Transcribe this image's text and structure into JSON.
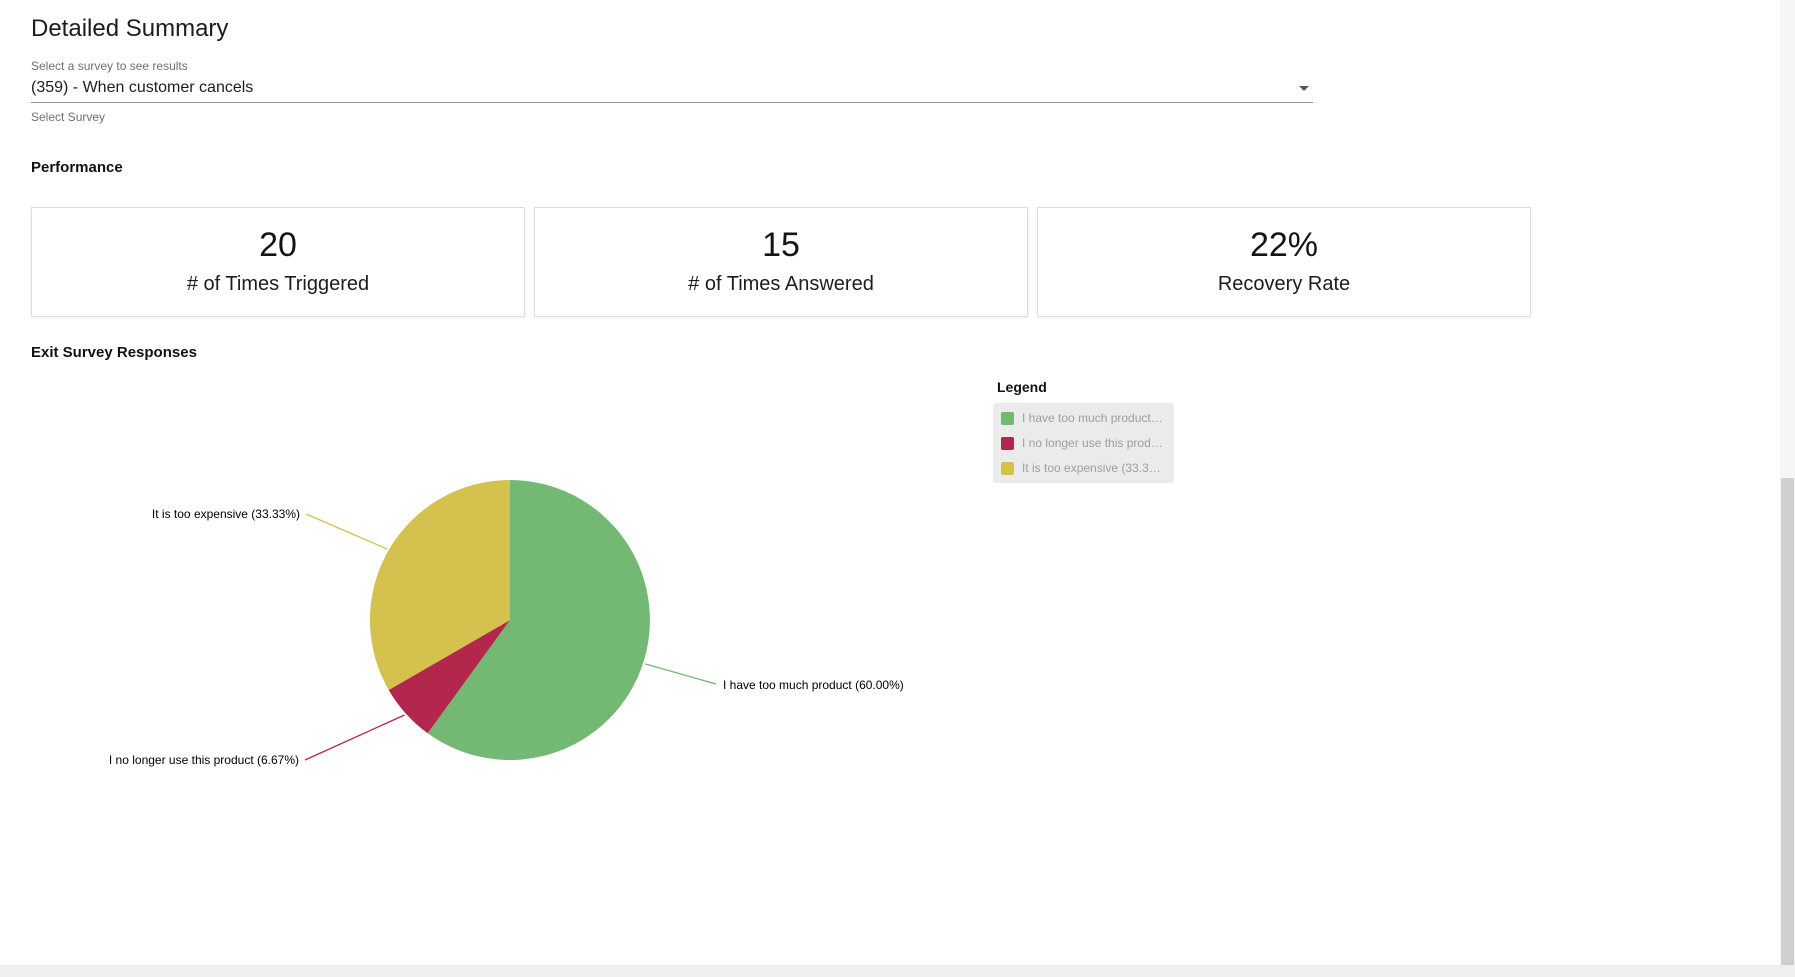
{
  "page": {
    "title": "Detailed Summary"
  },
  "survey_select": {
    "label": "Select a survey to see results",
    "value": "(359) - When customer cancels",
    "helper": "Select Survey"
  },
  "performance": {
    "heading": "Performance",
    "cards": [
      {
        "value": "20",
        "label": "# of Times Triggered"
      },
      {
        "value": "15",
        "label": "# of Times Answered"
      },
      {
        "value": "22%",
        "label": "Recovery Rate"
      }
    ]
  },
  "responses": {
    "heading": "Exit Survey Responses",
    "legend_title": "Legend"
  },
  "chart_data": {
    "type": "pie",
    "title": "Exit Survey Responses",
    "start": "top",
    "direction": "clockwise",
    "legend_position": "top-right",
    "slices": [
      {
        "label": "I have too much product",
        "pct": 60.0,
        "display": "I have too much product (60.00%)",
        "color": "#73b973"
      },
      {
        "label": "I no longer use this product",
        "pct": 6.67,
        "display": "I no longer use this product (6.67%)",
        "color": "#b3274d"
      },
      {
        "label": "It is too expensive",
        "pct": 33.33,
        "display": "It is too expensive (33.33%)",
        "color": "#d4c14e"
      }
    ]
  }
}
